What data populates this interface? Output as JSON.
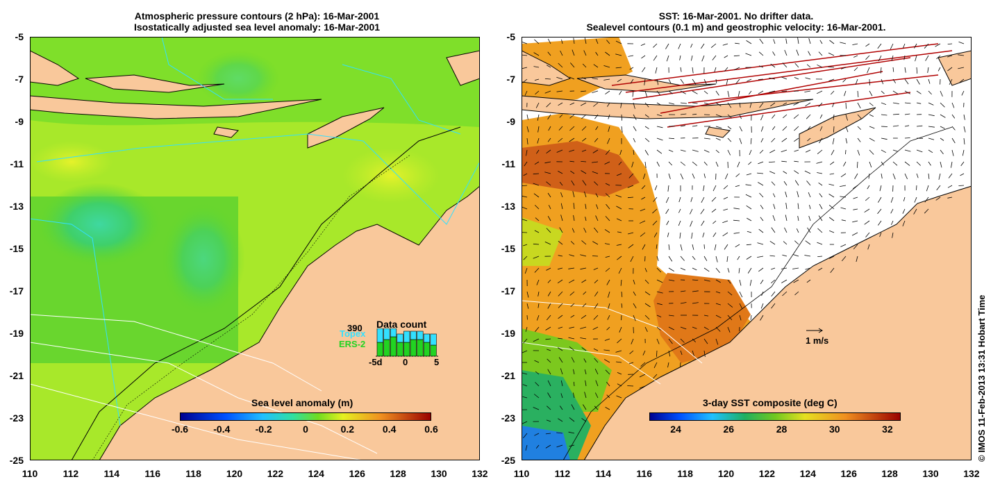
{
  "left_panel": {
    "title_line1": "Atmospheric pressure contours (2 hPa): 16-Mar-2001",
    "title_line2": "Isostatically adjusted sea level anomaly: 16-Mar-2001",
    "y_ticks": [
      "-5",
      "-7",
      "-9",
      "-11",
      "-13",
      "-15",
      "-17",
      "-19",
      "-21",
      "-23",
      "-25"
    ],
    "x_ticks": [
      "110",
      "112",
      "114",
      "116",
      "118",
      "120",
      "122",
      "124",
      "126",
      "128",
      "130",
      "132"
    ],
    "colorbar_title": "Sea level anomaly (m)",
    "colorbar_ticks": [
      "-0.6",
      "-0.4",
      "-0.2",
      "0",
      "0.2",
      "0.4",
      "0.6"
    ],
    "data_count": {
      "max_label": "390",
      "title": "Data count",
      "topex_label": "Topex",
      "ers_label": "ERS-2",
      "x_ticks": [
        "-5d",
        "0",
        "5"
      ],
      "topex_color": "#33e0ff",
      "ers_color": "#22d322",
      "bars": [
        {
          "day": -4,
          "topex": 0.5,
          "ers": 0.5
        },
        {
          "day": -3,
          "topex": 0.4,
          "ers": 0.6
        },
        {
          "day": -2,
          "topex": 0.3,
          "ers": 0.7
        },
        {
          "day": -1,
          "topex": 0.3,
          "ers": 0.5
        },
        {
          "day": 0,
          "topex": 0.4,
          "ers": 0.5
        },
        {
          "day": 1,
          "topex": 0.3,
          "ers": 0.6
        },
        {
          "day": 2,
          "topex": 0.3,
          "ers": 0.6
        },
        {
          "day": 3,
          "topex": 0.3,
          "ers": 0.5
        },
        {
          "day": 4,
          "topex": 0.4,
          "ers": 0.4
        }
      ]
    }
  },
  "right_panel": {
    "title_line1": "SST: 16-Mar-2001. No drifter data.",
    "title_line2": "Sealevel contours (0.1 m) and geostrophic velocity: 16-Mar-2001.",
    "y_ticks": [
      "-5",
      "-7",
      "-9",
      "-11",
      "-13",
      "-15",
      "-17",
      "-19",
      "-21",
      "-23",
      "-25"
    ],
    "x_ticks": [
      "110",
      "112",
      "114",
      "116",
      "118",
      "120",
      "122",
      "124",
      "126",
      "128",
      "130",
      "132"
    ],
    "colorbar_title": "3-day SST composite (deg C)",
    "colorbar_ticks": [
      "24",
      "26",
      "28",
      "30",
      "32"
    ],
    "velocity_scale_label": "1 m/s"
  },
  "credit": "© IMOS 11-Feb-2013 13:31 Hobart Time",
  "colors": {
    "land": "#f9c89b",
    "sla_green": "#5fd62a",
    "sla_yellow": "#c9ef2a",
    "sst_orange": "#f0a020"
  }
}
